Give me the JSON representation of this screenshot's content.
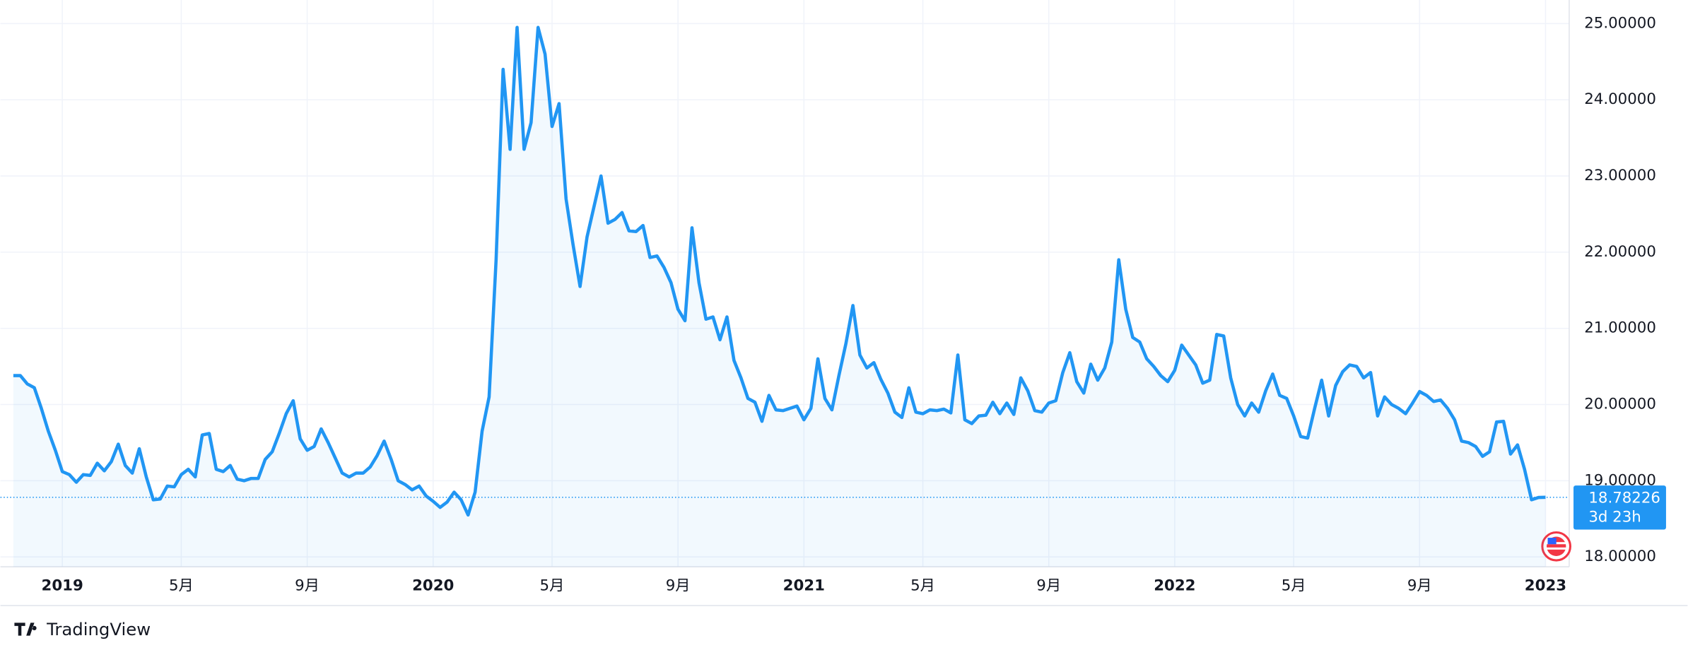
{
  "chart_data": {
    "type": "line",
    "color": "#2196f3",
    "grid": true,
    "countdown": "3d 23h",
    "watermark": "TradingView",
    "ylim": [
      17.87,
      25.31
    ],
    "yticks": [
      {
        "value": 18,
        "label": "18.00000"
      },
      {
        "value": 19,
        "label": "19.00000"
      },
      {
        "value": 20,
        "label": "20.00000"
      },
      {
        "value": 21,
        "label": "21.00000"
      },
      {
        "value": 22,
        "label": "22.00000"
      },
      {
        "value": 23,
        "label": "23.00000"
      },
      {
        "value": 24,
        "label": "24.00000"
      },
      {
        "value": 25,
        "label": "25.00000"
      }
    ],
    "categories": [
      null,
      null,
      null,
      null,
      null,
      null,
      null,
      "2019",
      null,
      null,
      null,
      null,
      null,
      null,
      null,
      null,
      null,
      null,
      null,
      null,
      null,
      null,
      null,
      null,
      "5月",
      null,
      null,
      null,
      null,
      null,
      null,
      null,
      null,
      null,
      null,
      null,
      null,
      null,
      null,
      null,
      null,
      null,
      "9月",
      null,
      null,
      null,
      null,
      null,
      null,
      null,
      null,
      null,
      null,
      null,
      null,
      null,
      null,
      null,
      null,
      null,
      "2020",
      null,
      null,
      null,
      null,
      null,
      null,
      null,
      null,
      null,
      null,
      null,
      null,
      null,
      null,
      null,
      null,
      "5月",
      null,
      null,
      null,
      null,
      null,
      null,
      null,
      null,
      null,
      null,
      null,
      null,
      null,
      null,
      null,
      null,
      null,
      "9月",
      null,
      null,
      null,
      null,
      null,
      null,
      null,
      null,
      null,
      null,
      null,
      null,
      null,
      null,
      null,
      null,
      null,
      "2021",
      null,
      null,
      null,
      null,
      null,
      null,
      null,
      null,
      null,
      null,
      null,
      null,
      null,
      null,
      null,
      null,
      "5月",
      null,
      null,
      null,
      null,
      null,
      null,
      null,
      null,
      null,
      null,
      null,
      null,
      null,
      null,
      null,
      null,
      null,
      "9月",
      null,
      null,
      null,
      null,
      null,
      null,
      null,
      null,
      null,
      null,
      null,
      null,
      null,
      null,
      null,
      null,
      null,
      "2022",
      null,
      null,
      null,
      null,
      null,
      null,
      null,
      null,
      null,
      null,
      null,
      null,
      null,
      null,
      null,
      null,
      "5月",
      null,
      null,
      null,
      null,
      null,
      null,
      null,
      null,
      null,
      null,
      null,
      null,
      null,
      null,
      null,
      null,
      null,
      "9月",
      null,
      null,
      null,
      null,
      null,
      null,
      null,
      null,
      null,
      null,
      null,
      null,
      null,
      null,
      null,
      null,
      null,
      "2023"
    ],
    "values": [
      20.38,
      20.38,
      20.27,
      20.22,
      19.95,
      19.65,
      19.4,
      19.12,
      19.08,
      18.98,
      19.08,
      19.07,
      19.23,
      19.13,
      19.25,
      19.48,
      19.2,
      19.1,
      19.42,
      19.05,
      18.75,
      18.76,
      18.93,
      18.92,
      19.08,
      19.15,
      19.05,
      19.6,
      19.62,
      19.15,
      19.12,
      19.2,
      19.02,
      19.0,
      19.03,
      19.03,
      19.28,
      19.38,
      19.62,
      19.88,
      20.05,
      19.55,
      19.4,
      19.45,
      19.68,
      19.5,
      19.3,
      19.1,
      19.05,
      19.1,
      19.1,
      19.18,
      19.33,
      19.52,
      19.28,
      19.0,
      18.95,
      18.88,
      18.93,
      18.8,
      18.73,
      18.65,
      18.72,
      18.85,
      18.75,
      18.55,
      18.85,
      19.65,
      20.1,
      21.9,
      24.4,
      23.35,
      24.95,
      23.35,
      23.7,
      24.95,
      24.6,
      23.65,
      23.95,
      22.7,
      22.1,
      21.55,
      22.2,
      22.6,
      23.0,
      22.38,
      22.43,
      22.52,
      22.28,
      22.27,
      22.35,
      21.93,
      21.95,
      21.8,
      21.6,
      21.25,
      21.1,
      22.32,
      21.6,
      21.12,
      21.15,
      20.85,
      21.15,
      20.58,
      20.35,
      20.08,
      20.03,
      19.78,
      20.12,
      19.93,
      19.92,
      19.95,
      19.98,
      19.8,
      19.95,
      20.6,
      20.08,
      19.93,
      20.38,
      20.8,
      21.3,
      20.65,
      20.48,
      20.55,
      20.33,
      20.15,
      19.9,
      19.83,
      20.22,
      19.9,
      19.88,
      19.93,
      19.92,
      19.94,
      19.89,
      20.65,
      19.8,
      19.75,
      19.85,
      19.86,
      20.03,
      19.88,
      20.02,
      19.87,
      20.35,
      20.18,
      19.92,
      19.9,
      20.02,
      20.05,
      20.42,
      20.68,
      20.3,
      20.15,
      20.53,
      20.32,
      20.48,
      20.82,
      21.9,
      21.25,
      20.88,
      20.82,
      20.6,
      20.5,
      20.38,
      20.3,
      20.45,
      20.78,
      20.65,
      20.52,
      20.28,
      20.32,
      20.92,
      20.9,
      20.35,
      20.0,
      19.85,
      20.02,
      19.9,
      20.18,
      20.4,
      20.12,
      20.08,
      19.85,
      19.58,
      19.56,
      19.95,
      20.32,
      19.85,
      20.25,
      20.43,
      20.52,
      20.5,
      20.35,
      20.42,
      19.85,
      20.1,
      20.0,
      19.95,
      19.88,
      20.02,
      20.17,
      20.12,
      20.04,
      20.06,
      19.95,
      19.8,
      19.52,
      19.5,
      19.45,
      19.32,
      19.38,
      19.77,
      19.78,
      19.35,
      19.47,
      19.15,
      18.75,
      18.78,
      18.78226
    ]
  }
}
